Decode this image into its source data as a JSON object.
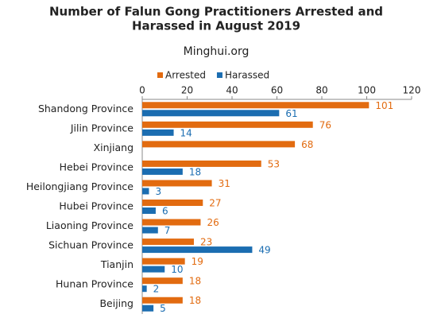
{
  "chart_data": {
    "type": "hbar",
    "title": [
      "Number of Falun Gong Practitioners Arrested and",
      "Harassed in August 2019"
    ],
    "subtitle": "Minghui.org",
    "categories": [
      "Shandong Province",
      "Jilin Province",
      "Xinjiang",
      "Hebei Province",
      "Heilongjiang Province",
      "Hubei Province",
      "Liaoning Province",
      "Sichuan Province",
      "Tianjin",
      "Hunan Province",
      "Beijing"
    ],
    "series": [
      {
        "name": "Arrested",
        "color": "#e26b10",
        "values": [
          101,
          76,
          68,
          53,
          31,
          27,
          26,
          23,
          19,
          18,
          18
        ]
      },
      {
        "name": "Harassed",
        "color": "#1b6db1",
        "values": [
          61,
          14,
          null,
          18,
          3,
          6,
          7,
          49,
          10,
          2,
          5
        ]
      }
    ],
    "xlim": [
      0,
      120
    ],
    "xticks": [
      0,
      20,
      40,
      60,
      80,
      100,
      120
    ]
  }
}
